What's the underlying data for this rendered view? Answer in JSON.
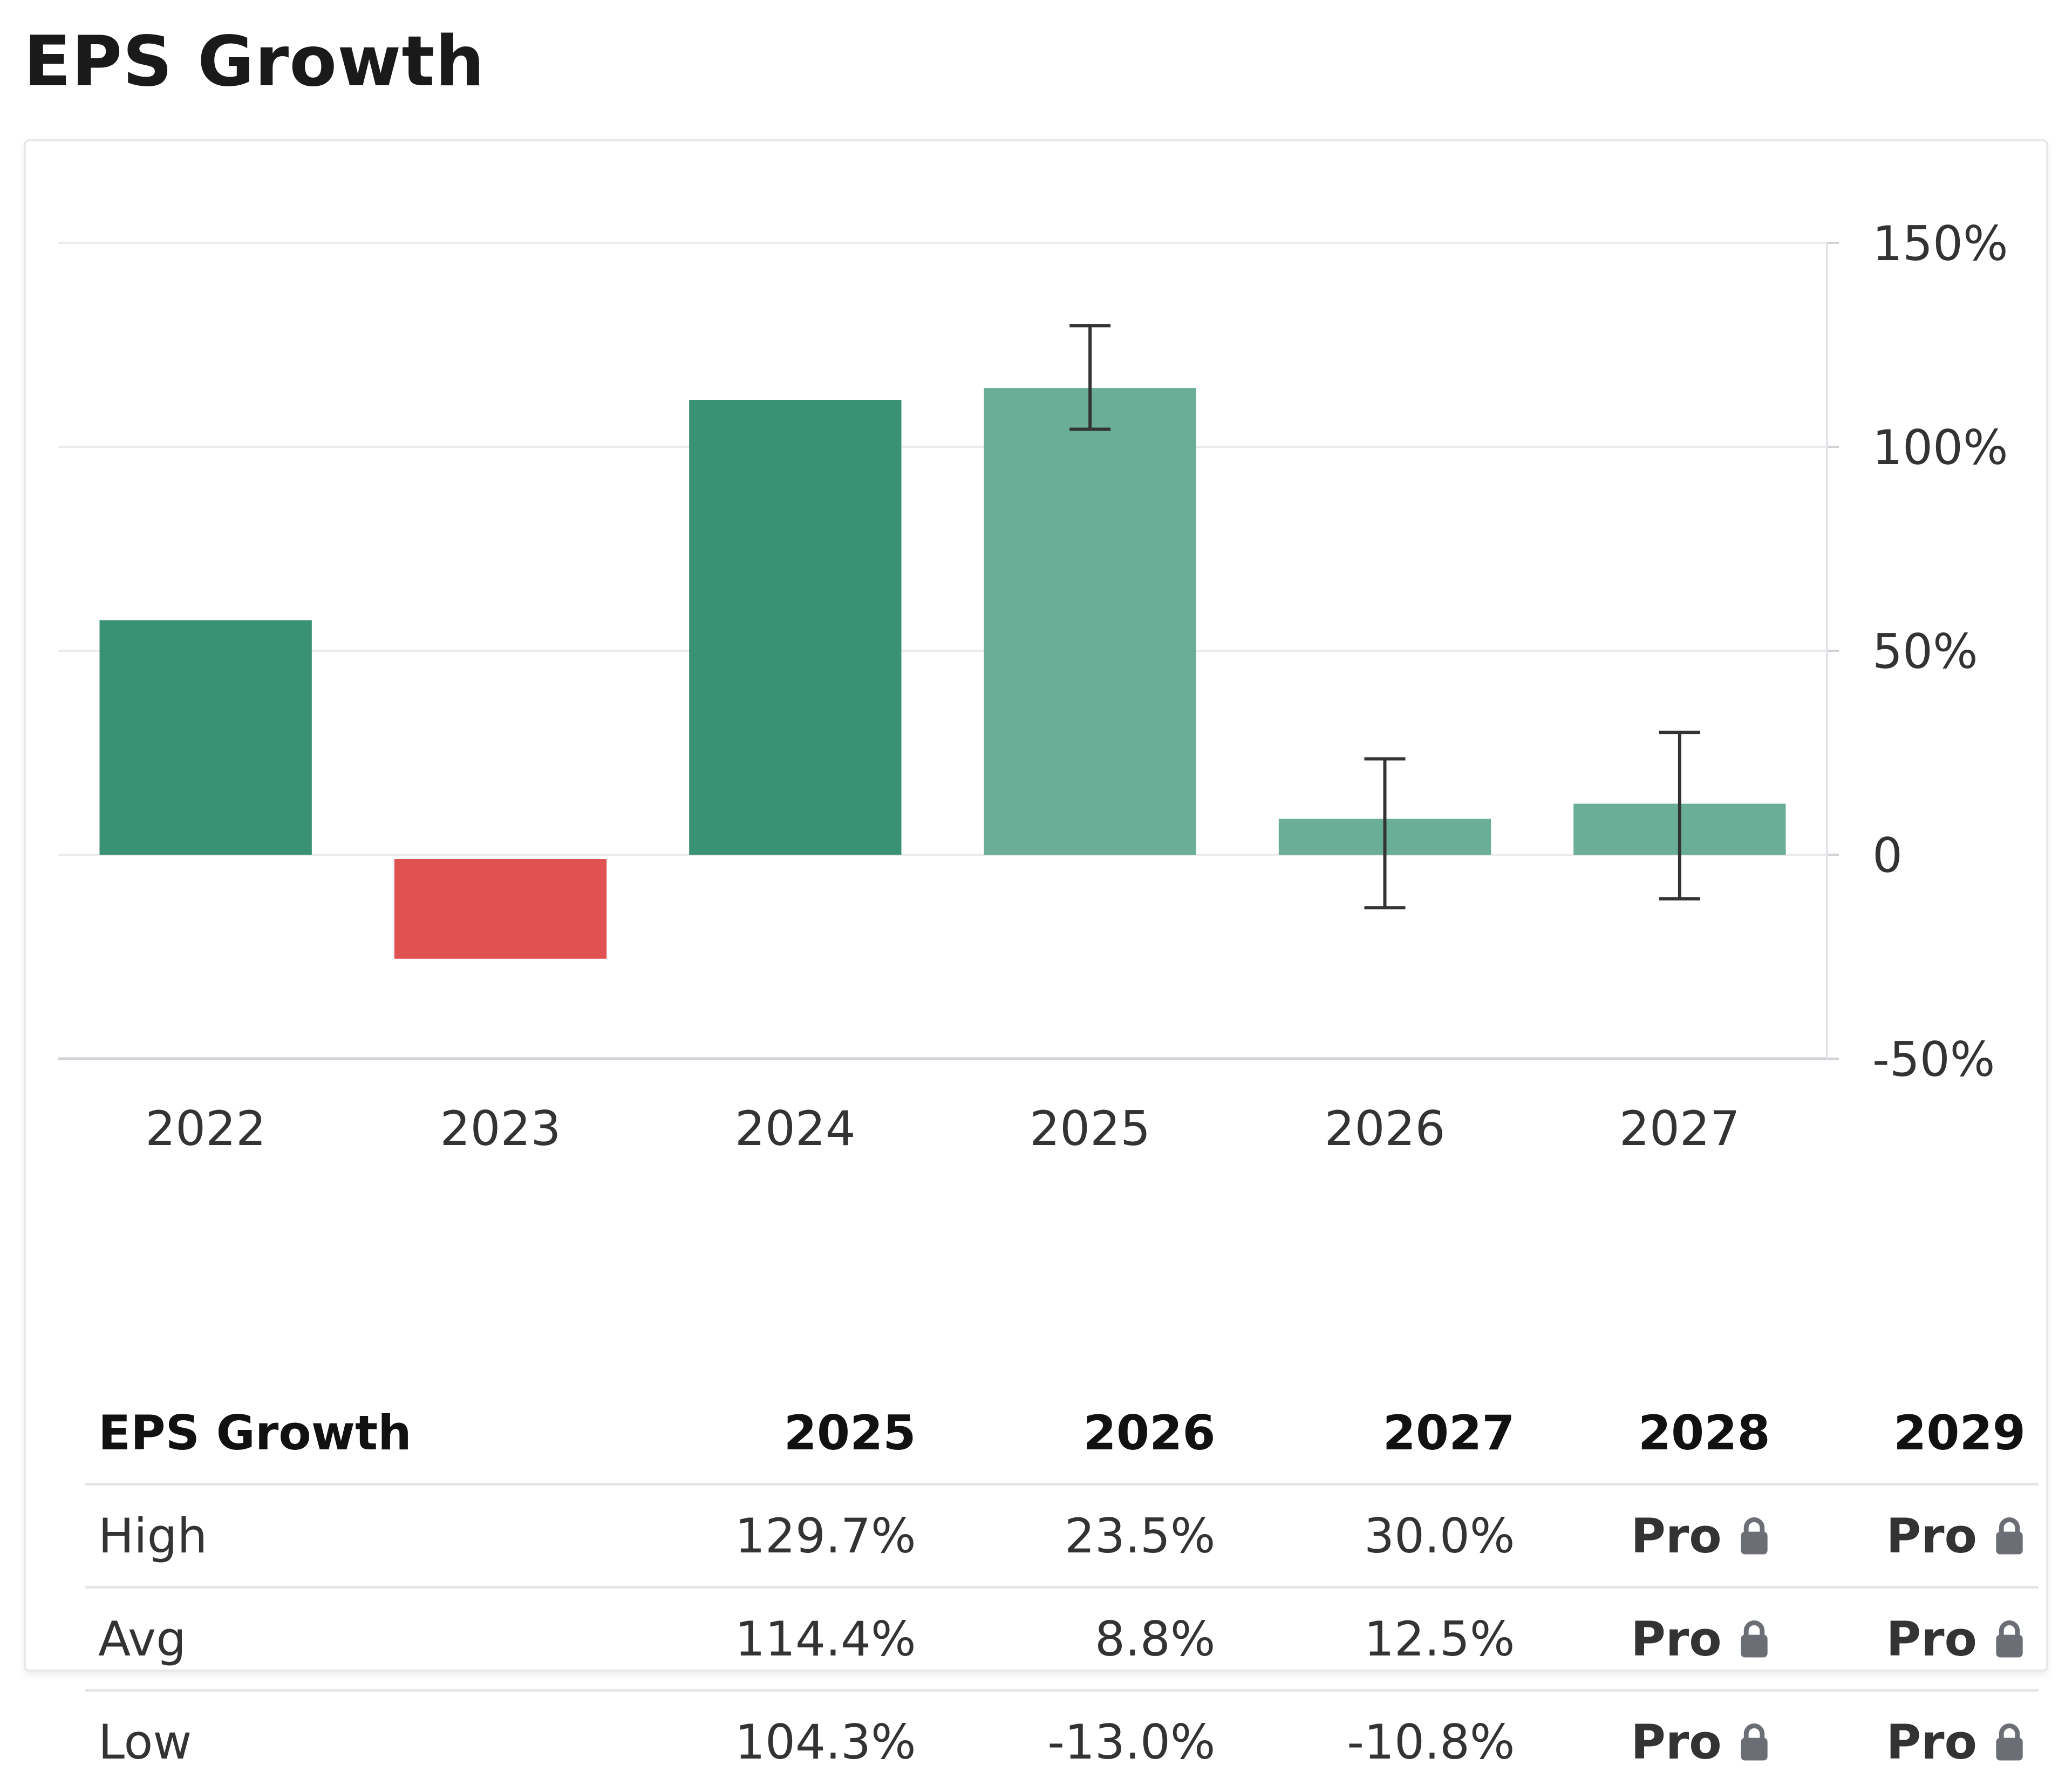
{
  "title": "EPS Growth",
  "colors": {
    "actual_positive": "#3a9274",
    "actual_negative": "#e05252",
    "estimate": "#6aae98",
    "gridline": "#ececec",
    "error_bar": "#333333"
  },
  "chart_data": {
    "type": "bar",
    "title": "EPS Growth",
    "categories": [
      "2022",
      "2023",
      "2024",
      "2025",
      "2026",
      "2027"
    ],
    "values": [
      57.5,
      -25.5,
      111.5,
      114.4,
      8.8,
      12.5
    ],
    "estimate": [
      false,
      false,
      false,
      true,
      true,
      true
    ],
    "error_low": [
      null,
      null,
      null,
      104.3,
      -13.0,
      -10.8
    ],
    "error_high": [
      null,
      null,
      null,
      129.7,
      23.5,
      30.0
    ],
    "ylim": [
      -50,
      150
    ],
    "yticks": [
      150,
      100,
      50,
      0,
      -50
    ],
    "ytick_labels": [
      "150%",
      "100%",
      "50%",
      "0",
      "-50%"
    ],
    "y_axis_side": "right",
    "grid": true
  },
  "table": {
    "header": [
      "EPS Growth",
      "2025",
      "2026",
      "2027",
      "2028",
      "2029"
    ],
    "rows": [
      {
        "label": "High",
        "values": [
          "129.7%",
          "23.5%",
          "30.0%"
        ],
        "classes": [
          "pos",
          "pos",
          "pos"
        ],
        "locked": [
          "Pro",
          "Pro"
        ]
      },
      {
        "label": "Avg",
        "values": [
          "114.4%",
          "8.8%",
          "12.5%"
        ],
        "classes": [
          "pos",
          "pos",
          "pos"
        ],
        "locked": [
          "Pro",
          "Pro"
        ]
      },
      {
        "label": "Low",
        "values": [
          "104.3%",
          "-13.0%",
          "-10.8%"
        ],
        "classes": [
          "pos",
          "neg",
          "neg"
        ],
        "locked": [
          "Pro",
          "Pro"
        ]
      }
    ],
    "lock_icon": "lock-icon"
  }
}
